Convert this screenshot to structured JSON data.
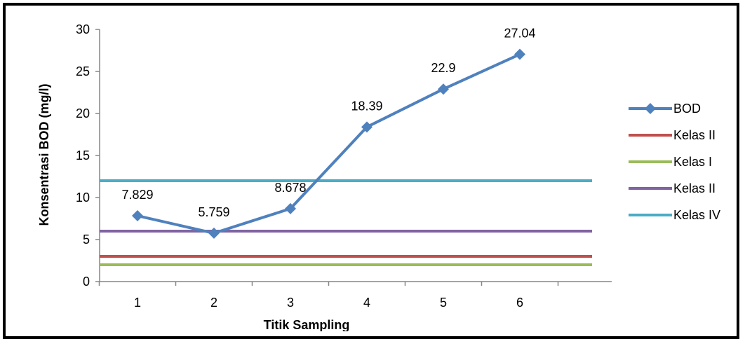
{
  "chart_data": {
    "type": "line",
    "xlabel": "Titik Sampling",
    "ylabel": "Konsentrasi BOD (mg/l)",
    "categories": [
      "1",
      "2",
      "3",
      "4",
      "5",
      "6"
    ],
    "ylim": [
      0,
      30
    ],
    "yticks": [
      0,
      5,
      10,
      15,
      20,
      25,
      30
    ],
    "grid": false,
    "legend_position": "right",
    "series": [
      {
        "name": "BOD",
        "values": [
          7.829,
          5.759,
          8.678,
          18.39,
          22.9,
          27.04
        ],
        "labels": [
          "7.829",
          "5.759",
          "8.678",
          "18.39",
          "22.9",
          "27.04"
        ],
        "color": "#4F81BD",
        "marker": "diamond",
        "kind": "line"
      },
      {
        "name": "Kelas II",
        "value": 3,
        "color": "#C0504D",
        "kind": "hline"
      },
      {
        "name": "Kelas I",
        "value": 2,
        "color": "#9BBB59",
        "kind": "hline"
      },
      {
        "name": "Kelas II",
        "value": 6,
        "color": "#8064A2",
        "kind": "hline"
      },
      {
        "name": "Kelas IV",
        "value": 12,
        "color": "#4BACC6",
        "kind": "hline"
      }
    ]
  }
}
